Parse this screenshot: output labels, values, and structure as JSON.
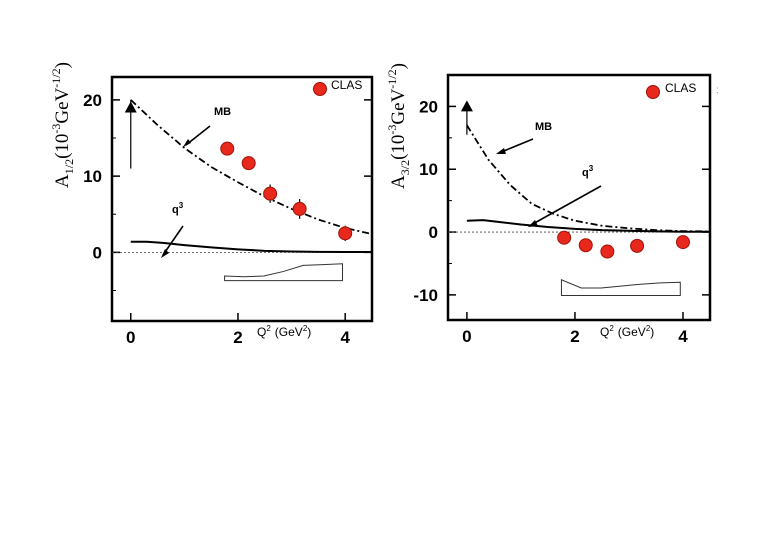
{
  "chart_data": [
    {
      "type": "scatter",
      "name": "A_1/2",
      "ylabel_main": "A",
      "ylabel_sub": "1/2",
      "ylabel_units": "(10",
      "ylabel_exp1": "-3",
      "ylabel_gev": "GeV",
      "ylabel_exp2": "-1/2",
      "ylabel_close": ")",
      "xlabel": "Q",
      "xlabel_exp": "2",
      "xlabel_units": "(GeV",
      "xlabel_units_exp": "2",
      "xlabel_close": ")",
      "xlim": [
        -0.35,
        4.5
      ],
      "ylim": [
        -9,
        23
      ],
      "x_ticks": [
        {
          "value": 0,
          "label": "0"
        },
        {
          "value": 2,
          "label": "2"
        },
        {
          "value": 4,
          "label": "4"
        }
      ],
      "y_ticks": [
        {
          "value": 0,
          "label": "0"
        },
        {
          "value": 10,
          "label": "10"
        },
        {
          "value": 20,
          "label": "20"
        }
      ],
      "legend_label": "CLAS",
      "photon_point": {
        "x": 0,
        "y": 19,
        "error_low": 11,
        "error_high": 20
      },
      "clas_points": [
        {
          "x": 1.8,
          "y": 13.6,
          "err": 0.8
        },
        {
          "x": 2.2,
          "y": 11.7,
          "err": 0.6
        },
        {
          "x": 2.6,
          "y": 7.7,
          "err": 1.2
        },
        {
          "x": 3.15,
          "y": 5.7,
          "err": 1.3
        },
        {
          "x": 4.0,
          "y": 2.5,
          "err": 1.0
        }
      ],
      "mb_curve": {
        "label": "MB",
        "x": [
          0,
          0.5,
          1.0,
          1.5,
          2.0,
          2.5,
          3.0,
          3.5,
          4.0,
          4.5
        ],
        "y": [
          20,
          16.7,
          13.7,
          11.2,
          9.2,
          7.3,
          5.7,
          4.3,
          3.2,
          2.4
        ]
      },
      "q3_curve": {
        "label": "q",
        "label_exp": "3",
        "x": [
          0,
          0.3,
          0.6,
          1.0,
          1.5,
          2.0,
          2.5,
          3.0,
          3.5,
          4.0,
          4.5
        ],
        "y": [
          1.4,
          1.4,
          1.25,
          0.95,
          0.65,
          0.4,
          0.2,
          0.12,
          0.06,
          0.05,
          0.05
        ]
      },
      "syst_band": {
        "x_start": 1.75,
        "x_end": 3.95,
        "bottom": -3.7,
        "upper": [
          -3.1,
          -3.2,
          -3.1,
          -2.5,
          -1.7,
          -1.6,
          -1.5
        ]
      }
    },
    {
      "type": "scatter",
      "name": "A_3/2",
      "ylabel_main": "A",
      "ylabel_sub": "3/2",
      "ylabel_units": "(10",
      "ylabel_exp1": "-3",
      "ylabel_gev": "GeV",
      "ylabel_exp2": "-1/2",
      "ylabel_close": ")",
      "xlabel": "Q",
      "xlabel_exp": "2",
      "xlabel_units": "(GeV",
      "xlabel_units_exp": "2",
      "xlabel_close": ")",
      "xlim": [
        -0.35,
        4.5
      ],
      "ylim": [
        -14,
        25
      ],
      "x_ticks": [
        {
          "value": 0,
          "label": "0"
        },
        {
          "value": 2,
          "label": "2"
        },
        {
          "value": 4,
          "label": "4"
        }
      ],
      "y_ticks": [
        {
          "value": -10,
          "label": "-10"
        },
        {
          "value": 0,
          "label": "0"
        },
        {
          "value": 10,
          "label": "10"
        },
        {
          "value": 20,
          "label": "20"
        }
      ],
      "legend_label": "CLAS",
      "photon_point": {
        "x": 0,
        "y": 20,
        "error_low": 15.5,
        "error_high": 20.5
      },
      "clas_points": [
        {
          "x": 1.8,
          "y": -0.9,
          "err": 0.6
        },
        {
          "x": 2.2,
          "y": -2.1,
          "err": 0.9
        },
        {
          "x": 2.6,
          "y": -3.1,
          "err": 1.0
        },
        {
          "x": 3.15,
          "y": -2.2,
          "err": 0.8
        },
        {
          "x": 4.0,
          "y": -1.6,
          "err": 0.6
        }
      ],
      "mb_curve": {
        "label": "MB",
        "x": [
          0,
          0.4,
          0.8,
          1.2,
          1.6,
          2.0,
          2.5,
          3.0,
          3.5,
          4.0,
          4.5
        ],
        "y": [
          17,
          11.5,
          7.5,
          4.5,
          2.9,
          1.8,
          1.0,
          0.6,
          0.3,
          0.15,
          0.1
        ]
      },
      "q3_curve": {
        "label": "q",
        "label_exp": "3",
        "x": [
          0,
          0.3,
          0.6,
          1.0,
          1.5,
          2.0,
          2.5,
          3.0,
          3.5,
          4.0,
          4.5
        ],
        "y": [
          1.8,
          1.9,
          1.6,
          1.2,
          0.8,
          0.5,
          0.3,
          0.2,
          0.1,
          0.05,
          0.05
        ]
      },
      "syst_band": {
        "x_start": 1.75,
        "x_end": 3.95,
        "bottom": -10.1,
        "upper": [
          -7.6,
          -8.9,
          -8.9,
          -8.6,
          -8.3,
          -8.1,
          -8.0
        ]
      }
    }
  ],
  "colors": {
    "clas_fill": "#e8281c",
    "clas_stroke": "#a01208"
  }
}
